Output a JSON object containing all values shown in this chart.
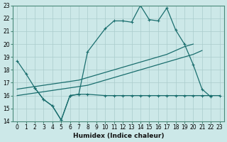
{
  "xlabel": "Humidex (Indice chaleur)",
  "bg_color": "#cce8e8",
  "grid_color": "#aacccc",
  "line_color": "#1a6e6e",
  "xlim": [
    -0.5,
    23.5
  ],
  "ylim": [
    14,
    23
  ],
  "xticks": [
    0,
    1,
    2,
    3,
    4,
    5,
    6,
    7,
    8,
    9,
    10,
    11,
    12,
    13,
    14,
    15,
    16,
    17,
    18,
    19,
    20,
    21,
    22,
    23
  ],
  "yticks": [
    14,
    15,
    16,
    17,
    18,
    19,
    20,
    21,
    22,
    23
  ],
  "line1_x": [
    0,
    1,
    2,
    3,
    4,
    5,
    6,
    7,
    8,
    10,
    11,
    12,
    13,
    14,
    15,
    16,
    17,
    18,
    19,
    20,
    21,
    22
  ],
  "line1_y": [
    18.7,
    17.7,
    16.6,
    15.7,
    15.2,
    14.1,
    16.0,
    16.1,
    19.4,
    21.2,
    21.8,
    21.8,
    21.7,
    23.0,
    21.9,
    21.8,
    22.8,
    21.1,
    20.0,
    18.4,
    16.5,
    15.9
  ],
  "line2_x": [
    0,
    1,
    2,
    3,
    4,
    5,
    6,
    7,
    8,
    9,
    10,
    11,
    12,
    13,
    14,
    15,
    16,
    17,
    18,
    19,
    20
  ],
  "line2_y": [
    16.5,
    16.6,
    16.7,
    16.8,
    16.9,
    17.0,
    17.1,
    17.2,
    17.4,
    17.6,
    17.8,
    18.0,
    18.2,
    18.4,
    18.6,
    18.8,
    19.0,
    19.2,
    19.5,
    19.8,
    20.0
  ],
  "line3_x": [
    0,
    1,
    2,
    3,
    4,
    5,
    6,
    7,
    8,
    9,
    10,
    11,
    12,
    13,
    14,
    15,
    16,
    17,
    18,
    19,
    20,
    21
  ],
  "line3_y": [
    16.0,
    16.1,
    16.2,
    16.3,
    16.4,
    16.5,
    16.6,
    16.7,
    16.8,
    17.0,
    17.2,
    17.4,
    17.6,
    17.8,
    18.0,
    18.2,
    18.4,
    18.6,
    18.8,
    19.0,
    19.2,
    19.5
  ],
  "line4_x": [
    2,
    3,
    4,
    5,
    6,
    7,
    8,
    10,
    11,
    12,
    13,
    14,
    15,
    16,
    17,
    18,
    19,
    20,
    21,
    22,
    23
  ],
  "line4_y": [
    16.6,
    15.7,
    15.2,
    14.1,
    16.0,
    16.1,
    16.1,
    16.0,
    16.0,
    16.0,
    16.0,
    16.0,
    16.0,
    16.0,
    16.0,
    16.0,
    16.0,
    16.0,
    16.0,
    16.0,
    16.0
  ]
}
